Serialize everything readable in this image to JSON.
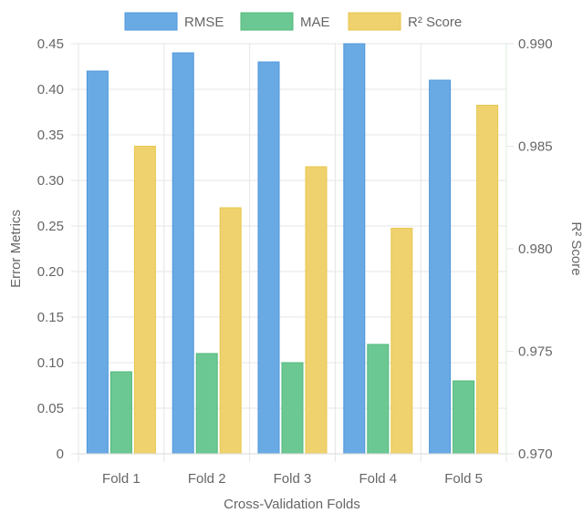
{
  "chart_data": {
    "type": "bar",
    "categories": [
      "Fold 1",
      "Fold 2",
      "Fold 3",
      "Fold 4",
      "Fold 5"
    ],
    "series": [
      {
        "name": "RMSE",
        "axis": "left",
        "values": [
          0.42,
          0.44,
          0.43,
          0.45,
          0.41
        ],
        "color": "#6aaae4",
        "border": "#4f97db"
      },
      {
        "name": "MAE",
        "axis": "left",
        "values": [
          0.09,
          0.11,
          0.1,
          0.12,
          0.08
        ],
        "color": "#6cc893",
        "border": "#4fb87b"
      },
      {
        "name": "R² Score",
        "axis": "right",
        "values": [
          0.985,
          0.982,
          0.984,
          0.981,
          0.987
        ],
        "color": "#efd26e",
        "border": "#e8c64e"
      }
    ],
    "xlabel": "Cross-Validation Folds",
    "ylabel_left": "Error Metrics",
    "ylabel_right": "R² Score",
    "ylim_left": [
      0,
      0.45
    ],
    "yticks_left": [
      "0",
      "0.05",
      "0.10",
      "0.15",
      "0.20",
      "0.25",
      "0.30",
      "0.35",
      "0.40",
      "0.45"
    ],
    "ylim_right": [
      0.97,
      0.99
    ],
    "yticks_right": [
      "0.970",
      "0.975",
      "0.980",
      "0.985",
      "0.990"
    ],
    "grid": true,
    "legend_position": "top-center"
  }
}
